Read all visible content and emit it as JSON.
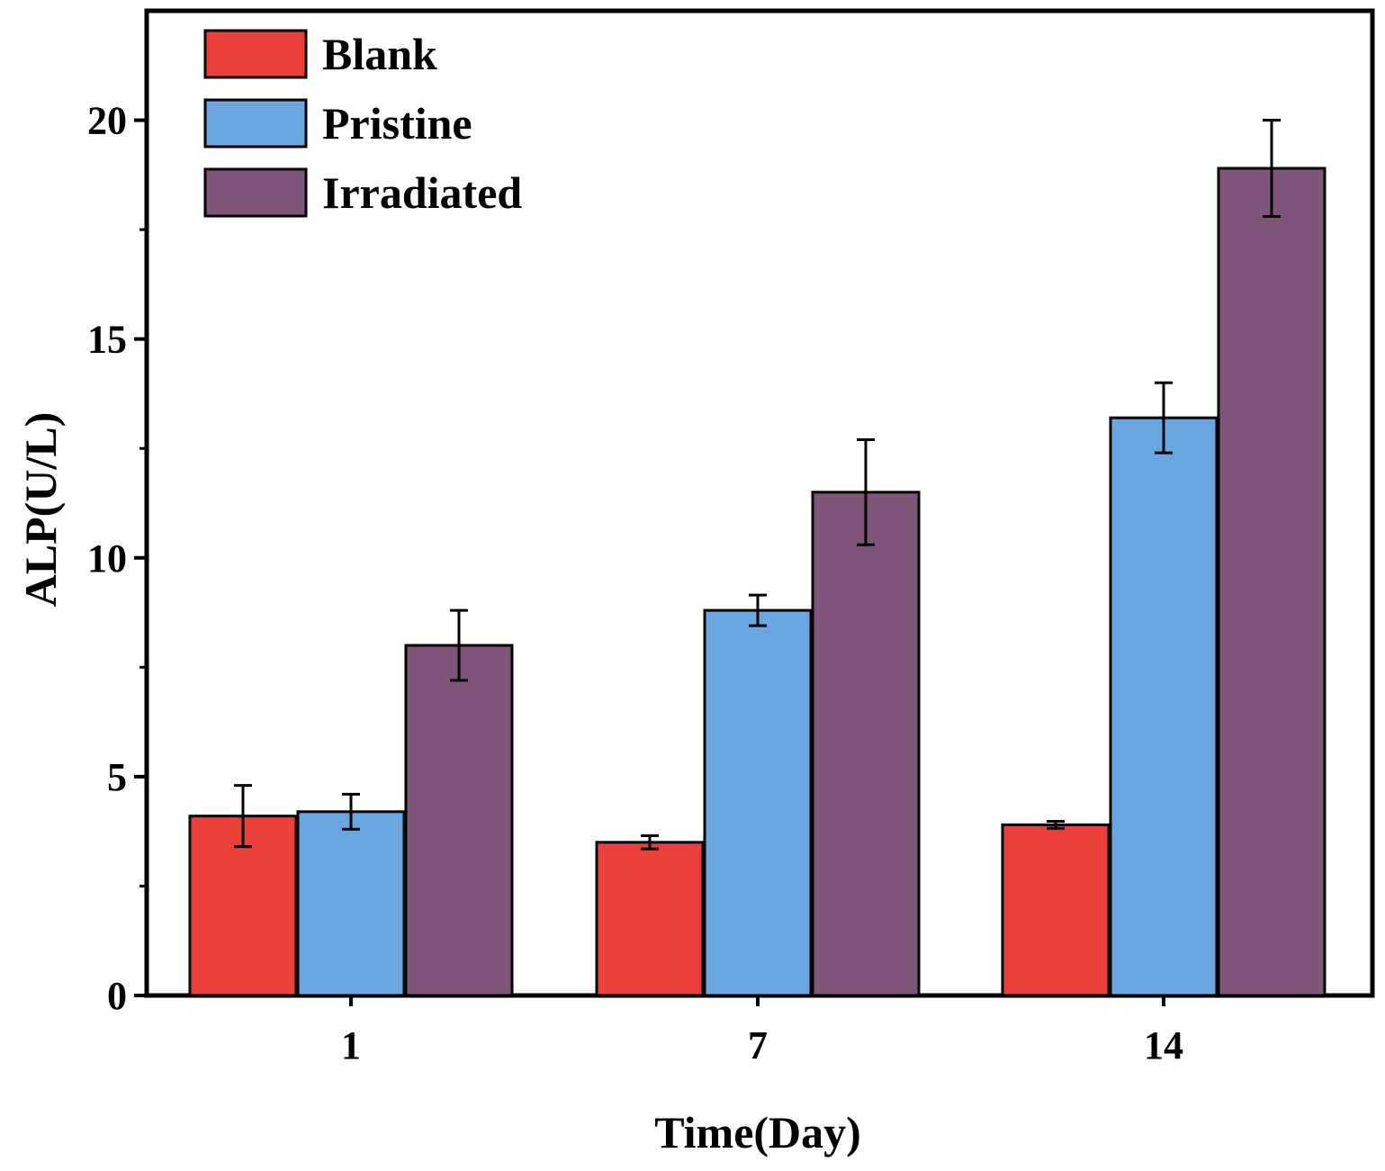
{
  "chart_data": {
    "type": "bar",
    "title": "",
    "xlabel": "Time(Day)",
    "ylabel": "ALP(U/L)",
    "categories": [
      "1",
      "7",
      "14"
    ],
    "ylim": [
      0,
      22.5
    ],
    "yticks": [
      0,
      5,
      10,
      15,
      20
    ],
    "ytick_labels": [
      "0",
      "5",
      "10",
      "15",
      "20"
    ],
    "legend_position": "top-left",
    "series": [
      {
        "name": "Blank",
        "color": "#ea3f3b",
        "values": [
          4.1,
          3.5,
          3.9
        ],
        "errors": [
          0.7,
          0.15,
          0.08
        ]
      },
      {
        "name": "Pristine",
        "color": "#6aa6e2",
        "values": [
          4.2,
          8.8,
          13.2
        ],
        "errors": [
          0.4,
          0.35,
          0.8
        ]
      },
      {
        "name": "Irradiated",
        "color": "#80557a",
        "values": [
          8.0,
          11.5,
          18.9
        ],
        "errors": [
          0.8,
          1.2,
          1.1
        ]
      }
    ]
  }
}
